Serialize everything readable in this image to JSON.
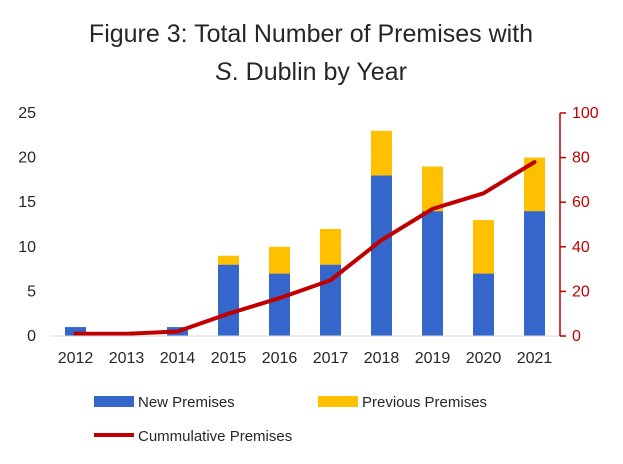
{
  "chart_data": {
    "type": "bar",
    "stacked": true,
    "title_line1": "Figure 3: Total Number of Premises with",
    "title_italic": "S",
    "title_line2_rest": ". Dublin by Year",
    "categories": [
      "2012",
      "2013",
      "2014",
      "2015",
      "2016",
      "2017",
      "2018",
      "2019",
      "2020",
      "2021"
    ],
    "series": [
      {
        "name": "New Premises",
        "type": "bar",
        "color": "#3566CC",
        "values": [
          1,
          0,
          1,
          8,
          7,
          8,
          18,
          14,
          7,
          14
        ]
      },
      {
        "name": "Previous Premises",
        "type": "bar",
        "color": "#FFC000",
        "values": [
          0,
          0,
          0,
          1,
          3,
          4,
          5,
          5,
          6,
          6
        ]
      },
      {
        "name": "Cummulative Premises",
        "type": "line",
        "axis": "right",
        "color": "#C00000",
        "values": [
          1,
          1,
          2,
          10,
          17,
          25,
          43,
          57,
          64,
          78
        ]
      }
    ],
    "y_left": {
      "min": 0,
      "max": 25,
      "ticks": [
        "0",
        "5",
        "10",
        "15",
        "20",
        "25"
      ]
    },
    "y_right": {
      "min": 0,
      "max": 100,
      "ticks": [
        "0",
        "20",
        "40",
        "60",
        "80",
        "100"
      ],
      "color": "#C00000"
    },
    "legend_position": "bottom",
    "grid": false
  }
}
